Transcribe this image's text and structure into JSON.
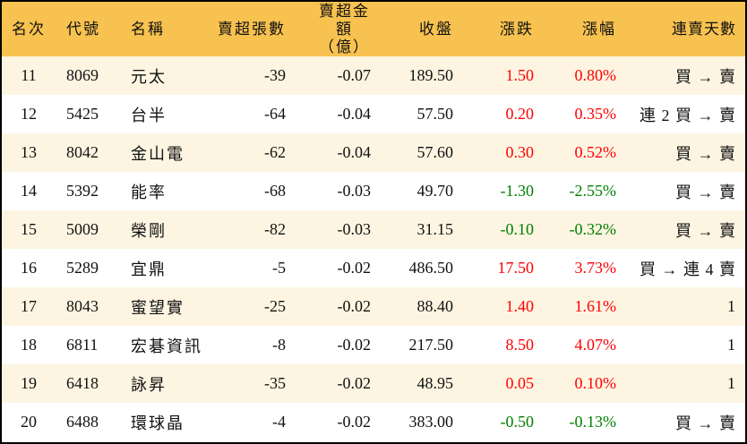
{
  "headers": [
    "名次",
    "代號",
    "名稱",
    "賣超張數",
    "賣超金額",
    "（億）",
    "收盤",
    "漲跌",
    "漲幅",
    "連賣天數"
  ],
  "colors": {
    "header_bg": "#f8c250",
    "row_alt": "#fdf5e2",
    "up": "#ff0000",
    "down": "#008000"
  },
  "rows": [
    {
      "rank": "11",
      "code": "8069",
      "name": "元太",
      "shares": "-39",
      "amount": "-0.07",
      "close": "189.50",
      "change": "1.50",
      "pct": "0.80%",
      "dir": "up",
      "days": "買 → 賣"
    },
    {
      "rank": "12",
      "code": "5425",
      "name": "台半",
      "shares": "-64",
      "amount": "-0.04",
      "close": "57.50",
      "change": "0.20",
      "pct": "0.35%",
      "dir": "up",
      "days": "連 2 買 → 賣"
    },
    {
      "rank": "13",
      "code": "8042",
      "name": "金山電",
      "shares": "-62",
      "amount": "-0.04",
      "close": "57.60",
      "change": "0.30",
      "pct": "0.52%",
      "dir": "up",
      "days": "買 → 賣"
    },
    {
      "rank": "14",
      "code": "5392",
      "name": "能率",
      "shares": "-68",
      "amount": "-0.03",
      "close": "49.70",
      "change": "-1.30",
      "pct": "-2.55%",
      "dir": "down",
      "days": "買 → 賣"
    },
    {
      "rank": "15",
      "code": "5009",
      "name": "榮剛",
      "shares": "-82",
      "amount": "-0.03",
      "close": "31.15",
      "change": "-0.10",
      "pct": "-0.32%",
      "dir": "down",
      "days": "買 → 賣"
    },
    {
      "rank": "16",
      "code": "5289",
      "name": "宜鼎",
      "shares": "-5",
      "amount": "-0.02",
      "close": "486.50",
      "change": "17.50",
      "pct": "3.73%",
      "dir": "up",
      "days": "買 → 連 4 賣"
    },
    {
      "rank": "17",
      "code": "8043",
      "name": "蜜望實",
      "shares": "-25",
      "amount": "-0.02",
      "close": "88.40",
      "change": "1.40",
      "pct": "1.61%",
      "dir": "up",
      "days": "1"
    },
    {
      "rank": "18",
      "code": "6811",
      "name": "宏碁資訊",
      "shares": "-8",
      "amount": "-0.02",
      "close": "217.50",
      "change": "8.50",
      "pct": "4.07%",
      "dir": "up",
      "days": "1"
    },
    {
      "rank": "19",
      "code": "6418",
      "name": "詠昇",
      "shares": "-35",
      "amount": "-0.02",
      "close": "48.95",
      "change": "0.05",
      "pct": "0.10%",
      "dir": "up",
      "days": "1"
    },
    {
      "rank": "20",
      "code": "6488",
      "name": "環球晶",
      "shares": "-4",
      "amount": "-0.02",
      "close": "383.00",
      "change": "-0.50",
      "pct": "-0.13%",
      "dir": "down",
      "days": "買 → 賣"
    }
  ]
}
